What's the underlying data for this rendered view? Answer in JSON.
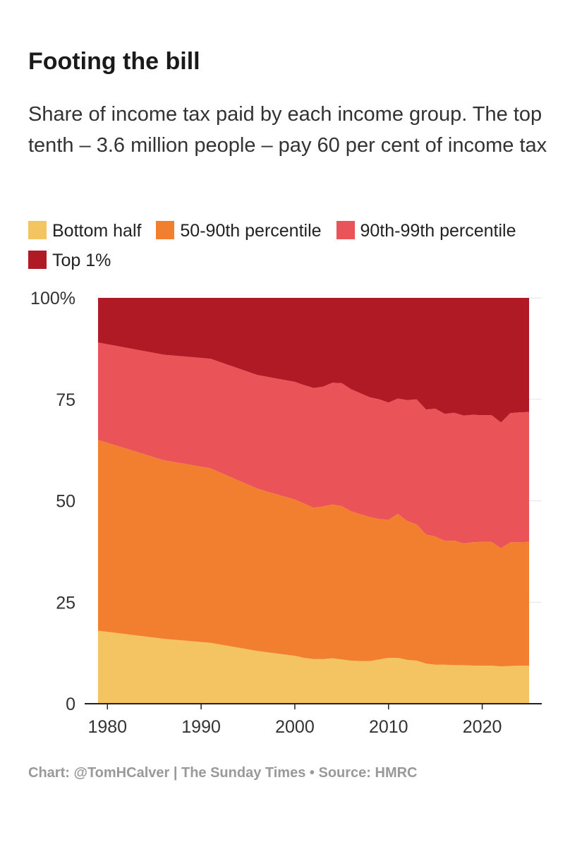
{
  "title": "Footing the bill",
  "subtitle": "Share of income tax paid by each income group. The top tenth – 3.6 million people – pay 60 per cent of income tax",
  "footer": {
    "credit": "Chart: @TomHCalver | The Sunday Times",
    "separator": "•",
    "source": "Source: HMRC"
  },
  "colors": {
    "bottom_half": "#f5c462",
    "p50_90": "#f27f30",
    "p90_99": "#ea5358",
    "top1": "#b01a25"
  },
  "chart_data": {
    "type": "area",
    "stacked": true,
    "xlim": [
      1979,
      2025
    ],
    "ylim": [
      0,
      100
    ],
    "yticks": [
      0,
      25,
      50,
      75,
      100
    ],
    "ytick_labels": [
      "0",
      "25",
      "50",
      "75",
      "100%"
    ],
    "xticks": [
      1980,
      1990,
      2000,
      2010,
      2020
    ],
    "xtick_labels": [
      "1980",
      "1990",
      "2000",
      "2010",
      "2020"
    ],
    "grid": true,
    "legend": "top",
    "x": [
      1979,
      1986,
      1991,
      1996,
      2000,
      2001,
      2002,
      2003,
      2004,
      2005,
      2006,
      2007,
      2008,
      2009,
      2010,
      2011,
      2012,
      2013,
      2014,
      2015,
      2016,
      2017,
      2018,
      2019,
      2020,
      2021,
      2022,
      2023,
      2024,
      2025
    ],
    "series": [
      {
        "name": "Bottom half",
        "color_key": "bottom_half",
        "values": [
          18.0,
          16.0,
          15.0,
          13.0,
          11.8,
          11.3,
          11.0,
          11.0,
          11.2,
          10.9,
          10.6,
          10.5,
          10.5,
          10.9,
          11.3,
          11.3,
          10.8,
          10.6,
          9.9,
          9.6,
          9.6,
          9.5,
          9.5,
          9.4,
          9.4,
          9.4,
          9.2,
          9.3,
          9.4,
          9.4
        ]
      },
      {
        "name": "50-90th percentile",
        "color_key": "p50_90",
        "values": [
          47.0,
          44.0,
          43.0,
          40.0,
          38.5,
          38.0,
          37.3,
          37.6,
          37.9,
          37.8,
          36.8,
          36.2,
          35.5,
          34.6,
          34.0,
          35.5,
          34.2,
          33.6,
          31.8,
          31.6,
          30.5,
          30.7,
          30.0,
          30.4,
          30.5,
          30.5,
          29.1,
          30.5,
          30.4,
          30.5
        ]
      },
      {
        "name": "90th-99th percentile",
        "color_key": "p90_99",
        "values": [
          24.0,
          26.0,
          27.0,
          28.0,
          29.0,
          29.2,
          29.5,
          29.5,
          30.0,
          30.3,
          30.1,
          29.8,
          29.5,
          29.5,
          28.9,
          28.4,
          29.8,
          30.8,
          30.8,
          31.5,
          31.3,
          31.5,
          31.5,
          31.4,
          31.2,
          31.2,
          31.0,
          31.8,
          32.0,
          32.0
        ]
      },
      {
        "name": "Top 1%",
        "color_key": "top1",
        "values": [
          11.0,
          14.0,
          15.0,
          19.0,
          20.7,
          21.5,
          22.2,
          21.9,
          20.9,
          21.0,
          22.5,
          23.5,
          24.5,
          25.0,
          25.8,
          24.8,
          25.2,
          25.0,
          27.5,
          27.3,
          28.6,
          28.3,
          29.0,
          28.8,
          28.9,
          28.9,
          30.7,
          28.4,
          28.2,
          28.1
        ]
      }
    ]
  }
}
